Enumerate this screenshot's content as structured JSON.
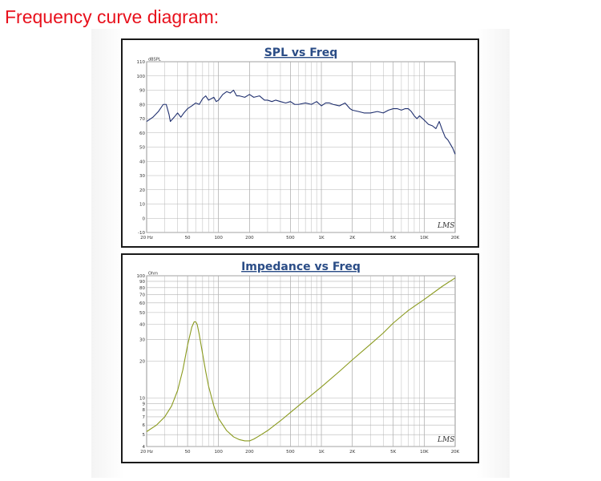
{
  "caption": "Frequency curve diagram:",
  "chart_data": [
    {
      "type": "line",
      "title": "SPL vs Freq",
      "ylabel": "dBSPL",
      "xlabel": "",
      "x_scale": "log",
      "xlim": [
        20,
        20000
      ],
      "ylim": [
        -10,
        110
      ],
      "x_ticks": [
        {
          "v": 20,
          "label": "20 Hz"
        },
        {
          "v": 50,
          "label": "50"
        },
        {
          "v": 100,
          "label": "100"
        },
        {
          "v": 200,
          "label": "200"
        },
        {
          "v": 500,
          "label": "500"
        },
        {
          "v": 1000,
          "label": "1K"
        },
        {
          "v": 2000,
          "label": "2K"
        },
        {
          "v": 5000,
          "label": "5K"
        },
        {
          "v": 10000,
          "label": "10K"
        },
        {
          "v": 20000,
          "label": "20K"
        }
      ],
      "y_ticks": [
        {
          "v": 110,
          "label": "110"
        },
        {
          "v": 100,
          "label": "100"
        },
        {
          "v": 90,
          "label": "90"
        },
        {
          "v": 80,
          "label": "80"
        },
        {
          "v": 70,
          "label": "70"
        },
        {
          "v": 60,
          "label": "60"
        },
        {
          "v": 50,
          "label": "50"
        },
        {
          "v": 40,
          "label": "40"
        },
        {
          "v": 30,
          "label": "30"
        },
        {
          "v": 20,
          "label": "20"
        },
        {
          "v": 10,
          "label": "10"
        },
        {
          "v": 0,
          "label": "0"
        },
        {
          "v": -10,
          "label": "-10"
        }
      ],
      "grid": true,
      "watermark": "LMS",
      "series": [
        {
          "color": "#1f2f6e",
          "x": [
            20,
            23,
            26,
            29,
            31,
            33,
            34,
            36,
            38,
            40,
            43,
            46,
            50,
            55,
            60,
            65,
            70,
            75,
            80,
            85,
            90,
            95,
            100,
            110,
            120,
            130,
            140,
            150,
            160,
            180,
            200,
            220,
            250,
            280,
            300,
            330,
            360,
            400,
            450,
            500,
            550,
            600,
            700,
            800,
            900,
            1000,
            1100,
            1200,
            1300,
            1500,
            1700,
            1900,
            2000,
            2300,
            2600,
            3000,
            3500,
            4000,
            4500,
            5000,
            5500,
            6000,
            6500,
            7000,
            7500,
            8000,
            8500,
            9000,
            10000,
            11000,
            12000,
            13000,
            14000,
            15000,
            16000,
            17000,
            18000,
            19000,
            20000
          ],
          "y": [
            68,
            71,
            75,
            80,
            80,
            73,
            68,
            70,
            72,
            74,
            71,
            74,
            77,
            79,
            81,
            80,
            84,
            86,
            83,
            84,
            85,
            82,
            83,
            87,
            89,
            88,
            90,
            86,
            86,
            85,
            87,
            85,
            86,
            83,
            83,
            82,
            83,
            82,
            81,
            82,
            80,
            80,
            81,
            80,
            82,
            79,
            81,
            81,
            80,
            79,
            81,
            77,
            76,
            75,
            74,
            74,
            75,
            74,
            76,
            77,
            77,
            76,
            77,
            77,
            75,
            72,
            70,
            72,
            69,
            66,
            65,
            63,
            68,
            62,
            57,
            55,
            52,
            49,
            45
          ]
        }
      ]
    },
    {
      "type": "line",
      "title": "Impedance vs Freq",
      "ylabel": "Ohm",
      "xlabel": "",
      "x_scale": "log",
      "y_scale": "log",
      "xlim": [
        20,
        20000
      ],
      "ylim": [
        4,
        100
      ],
      "x_ticks": [
        {
          "v": 20,
          "label": "20 Hz"
        },
        {
          "v": 50,
          "label": "50"
        },
        {
          "v": 100,
          "label": "100"
        },
        {
          "v": 200,
          "label": "200"
        },
        {
          "v": 500,
          "label": "500"
        },
        {
          "v": 1000,
          "label": "1K"
        },
        {
          "v": 2000,
          "label": "2K"
        },
        {
          "v": 5000,
          "label": "5K"
        },
        {
          "v": 10000,
          "label": "10K"
        },
        {
          "v": 20000,
          "label": "20K"
        }
      ],
      "y_ticks": [
        {
          "v": 100,
          "label": "100"
        },
        {
          "v": 90,
          "label": "90"
        },
        {
          "v": 80,
          "label": "80"
        },
        {
          "v": 70,
          "label": "70"
        },
        {
          "v": 60,
          "label": "60"
        },
        {
          "v": 50,
          "label": "50"
        },
        {
          "v": 40,
          "label": "40"
        },
        {
          "v": 30,
          "label": "30"
        },
        {
          "v": 20,
          "label": "20"
        },
        {
          "v": 10,
          "label": "10"
        },
        {
          "v": 9,
          "label": "9"
        },
        {
          "v": 8,
          "label": "8"
        },
        {
          "v": 7,
          "label": "7"
        },
        {
          "v": 6,
          "label": "6"
        },
        {
          "v": 5,
          "label": "5"
        },
        {
          "v": 4,
          "label": "4"
        }
      ],
      "grid": true,
      "watermark": "LMS",
      "series": [
        {
          "color": "#8a9a1e",
          "x": [
            20,
            25,
            30,
            35,
            40,
            45,
            50,
            55,
            58,
            60,
            62,
            65,
            70,
            75,
            80,
            90,
            100,
            120,
            140,
            160,
            180,
            200,
            220,
            250,
            300,
            400,
            500,
            700,
            1000,
            1500,
            2000,
            3000,
            4000,
            5000,
            7000,
            10000,
            15000,
            20000
          ],
          "y": [
            5.3,
            6.0,
            7.0,
            8.6,
            11.5,
            17,
            27,
            38,
            42,
            42,
            40,
            33,
            23,
            16.5,
            12.5,
            8.6,
            6.8,
            5.4,
            4.8,
            4.55,
            4.45,
            4.45,
            4.6,
            4.9,
            5.4,
            6.5,
            7.6,
            9.6,
            12.3,
            16.5,
            20.5,
            27.5,
            34,
            41,
            52,
            64,
            82,
            96
          ]
        }
      ]
    }
  ]
}
